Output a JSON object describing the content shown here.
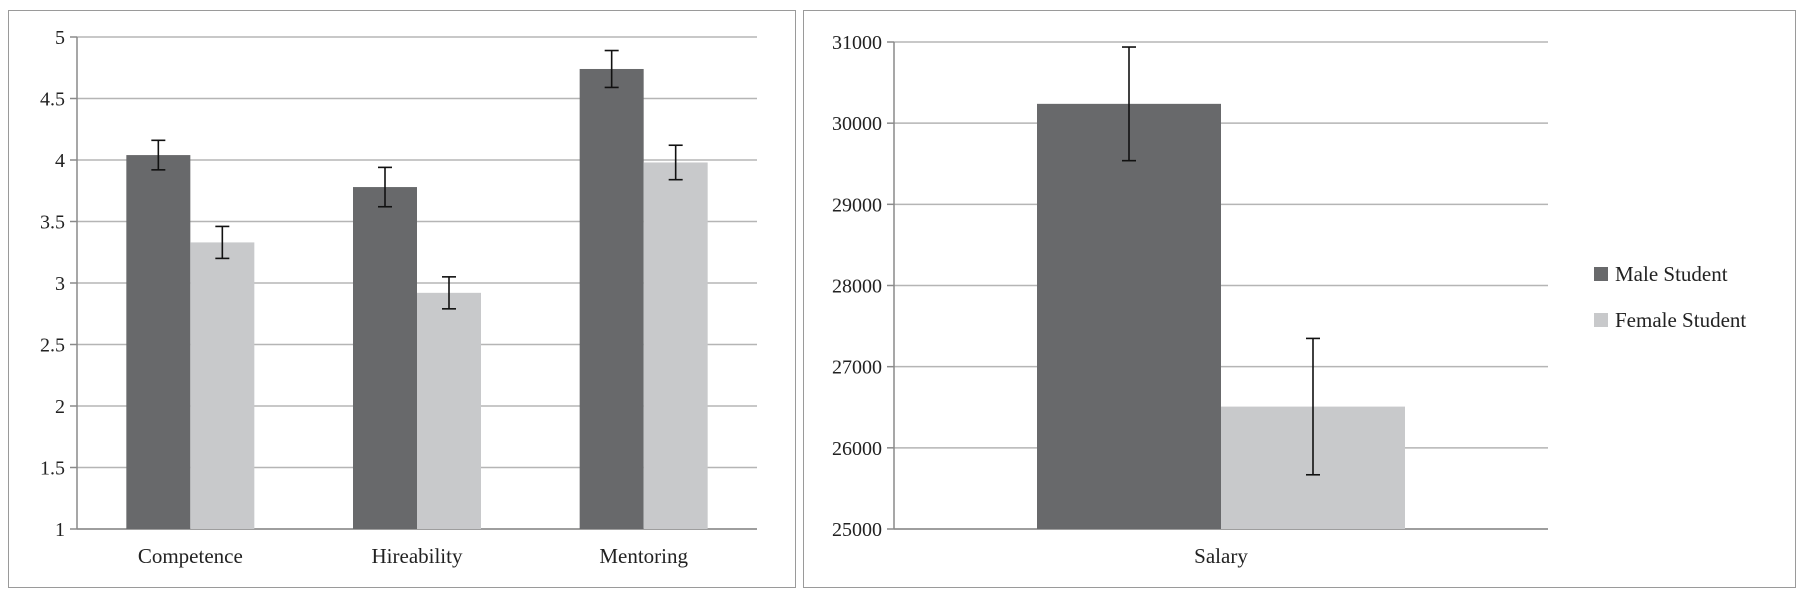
{
  "chart_data": [
    {
      "type": "bar",
      "categories": [
        "Competence",
        "Hireability",
        "Mentoring"
      ],
      "series": [
        {
          "name": "Male Student",
          "values": [
            4.04,
            3.78,
            4.74
          ],
          "errors": [
            0.12,
            0.16,
            0.15
          ],
          "color": "#68696b"
        },
        {
          "name": "Female Student",
          "values": [
            3.33,
            2.92,
            3.98
          ],
          "errors": [
            0.13,
            0.13,
            0.14
          ],
          "color": "#c8c9cb"
        }
      ],
      "ylim": [
        1,
        5
      ],
      "yticks": [
        "1",
        "1.5",
        "2",
        "2.5",
        "3",
        "3.5",
        "4",
        "4.5",
        "5"
      ],
      "grid": true
    },
    {
      "type": "bar",
      "categories": [
        "Salary"
      ],
      "series": [
        {
          "name": "Male Student",
          "values": [
            30238
          ],
          "errors": [
            700
          ],
          "color": "#68696b"
        },
        {
          "name": "Female Student",
          "values": [
            26508
          ],
          "errors": [
            840
          ],
          "color": "#c8c9cb"
        }
      ],
      "ylim": [
        25000,
        31000
      ],
      "yticks": [
        "25000",
        "26000",
        "27000",
        "28000",
        "29000",
        "30000",
        "31000"
      ],
      "grid": true,
      "legend_position": "right"
    }
  ],
  "legend": [
    {
      "label": "Male Student",
      "color": "#68696b"
    },
    {
      "label": "Female Student",
      "color": "#c8c9cb"
    }
  ]
}
